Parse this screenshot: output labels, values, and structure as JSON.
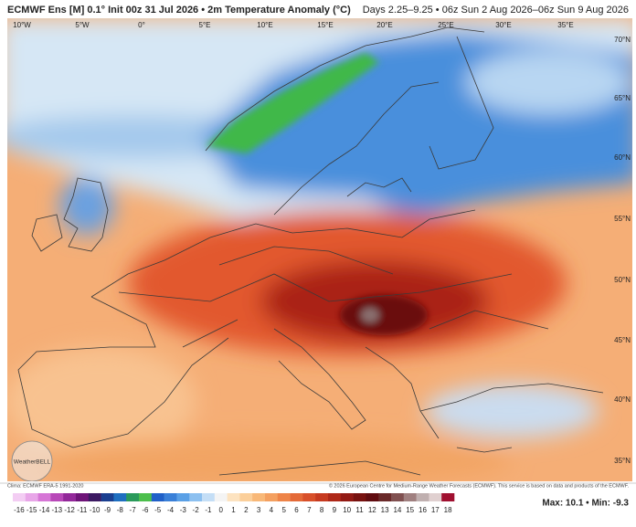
{
  "header": {
    "title": "ECMWF Ens [M] 0.1° Init 00z 31 Jul 2026 • 2m Temperature Anomaly (°C)",
    "valid": "Days 2.25–9.25 • 06z Sun 2 Aug 2026–06z Sun 9 Aug 2026"
  },
  "map": {
    "longitudes": [
      "10°W",
      "5°W",
      "0°",
      "5°E",
      "10°E",
      "15°E",
      "20°E",
      "25°E",
      "30°E",
      "35°E"
    ],
    "latitudes": [
      "70°N",
      "65°N",
      "60°N",
      "55°N",
      "50°N",
      "45°N",
      "40°N",
      "35°N"
    ],
    "logo": "WeatherBELL"
  },
  "footer": {
    "clima": "Clima: ECMWF ERA-5 1991-2020",
    "copyright": "© 2026 European Centre for Medium-Range Weather Forecasts (ECMWF). This service is based on data and products of the ECMWF."
  },
  "colorbar": {
    "ticks": [
      -16,
      -15,
      -14,
      -13,
      -12,
      -11,
      -10,
      -9,
      -8,
      -7,
      -6,
      -5,
      -4,
      -3,
      -2,
      -1,
      0,
      1,
      2,
      3,
      4,
      5,
      6,
      7,
      8,
      9,
      10,
      11,
      12,
      13,
      14,
      15,
      16,
      17,
      18
    ],
    "colors": [
      "#f3cdf3",
      "#e8a6e8",
      "#d676d6",
      "#b848b8",
      "#93289a",
      "#6e1478",
      "#3c1a62",
      "#1a3f90",
      "#1f6fc0",
      "#2a9a5a",
      "#4cbf4c",
      "#2060c8",
      "#3a80d8",
      "#5aa0e6",
      "#8cc0f0",
      "#c4def6",
      "#f4f4f4",
      "#fde3c0",
      "#fbcf9a",
      "#f8b878",
      "#f4a060",
      "#ee8448",
      "#e46a38",
      "#d8502a",
      "#c63a20",
      "#ae2818",
      "#921a14",
      "#781210",
      "#600c10",
      "#6a2a2a",
      "#805050",
      "#a08080",
      "#c0b0b0",
      "#e0d0d0",
      "#a01030"
    ]
  },
  "stats": "Max: 10.1 • Min: -9.3"
}
